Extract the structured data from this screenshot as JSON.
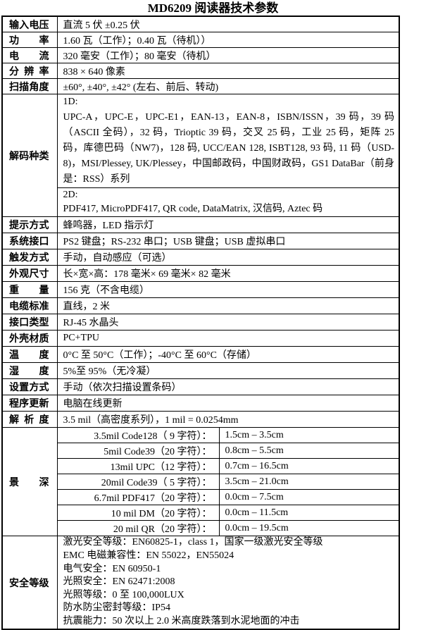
{
  "title": "MD6209 阅读器技术参数",
  "rows_top": [
    {
      "label": "输入电压",
      "value": "直流 5 伏 ±0.25 伏"
    },
    {
      "label": "功率",
      "value": "1.60 瓦（工作）；0.40 瓦（待机））"
    },
    {
      "label": "电流",
      "value": "320 毫安（工作）；80 毫安（待机）"
    },
    {
      "label": "分辨率",
      "value": "838 × 640 像素"
    },
    {
      "label": "扫描角度",
      "value": "±60°, ±40°, ±42° (左右、前后、转动)"
    }
  ],
  "decode": {
    "label": "解码种类",
    "d1": "1D:\nUPC-A，UPC-E，UPC-E1，EAN-13，EAN-8，ISBN/ISSN，39 码，39 码（ASCII 全码），32 码，Trioptic 39 码，交叉 25 码，工业 25 码，矩阵 25 码，库德巴码（NW7)，128 码, UCC/EAN 128, ISBT128, 93 码, 11 码（USD-8)，MSI/Plessey, UK/Plessey，中国邮政码，中国财政码，GS1 DataBar（前身是：RSS）系列",
    "d2": "2D:\nPDF417, MicroPDF417, QR code, DataMatrix,  汉信码, Aztec 码"
  },
  "singles": [
    {
      "label": "提示方式",
      "value": "蜂鸣器，LED 指示灯"
    },
    {
      "label": "系统接口",
      "value": "PS2 键盘；RS-232 串口；USB 键盘；USB 虚拟串口"
    },
    {
      "label": "触发方式",
      "value": "手动，自动感应（可选）"
    },
    {
      "label": "外观尺寸",
      "value": "长×宽×高：178 毫米× 69 毫米× 82 毫米"
    },
    {
      "label": "重量",
      "value": "156 克（不含电缆）"
    },
    {
      "label": "电缆标准",
      "value": "直线，2 米"
    },
    {
      "label": "接口类型",
      "value": "RJ-45 水晶头"
    },
    {
      "label": "外壳材质",
      "value": "PC+TPU"
    },
    {
      "label": "温度",
      "value": "0°C 至 50°C（工作）；-40°C 至 60°C（存储）"
    },
    {
      "label": "湿度",
      "value": "5%至 95%（无冷凝）"
    },
    {
      "label": "设置方式",
      "value": "手动（依次扫描设置条码）"
    },
    {
      "label": "程序更新",
      "value": "电脑在线更新"
    },
    {
      "label": "解析度",
      "value": "3.5 mil（高密度系列），1 mil = 0.0254mm"
    }
  ],
  "depth": {
    "label": "景深",
    "rows": [
      {
        "item": "3.5mil  Code128（ 9 字符）：",
        "range": "1.5cm – 3.5cm"
      },
      {
        "item": "5mil  Code39（20 字符）：",
        "range": "0.8cm – 5.5cm"
      },
      {
        "item": "13mil  UPC（12 字符）：",
        "range": "0.7cm – 16.5cm"
      },
      {
        "item": "20mil  Code39（ 5 字符）：",
        "range": "3.5cm – 21.0cm"
      },
      {
        "item": "6.7mil  PDF417（20 字符）：",
        "range": "0.0cm – 7.5cm"
      },
      {
        "item": "10 mil DM（20 字符）：",
        "range": "0.0cm – 11.5cm"
      },
      {
        "item": "20  mil  QR（20 字符）：",
        "range": "0.0cm – 19.5cm"
      }
    ]
  },
  "safety": {
    "label": "安全等级",
    "text": "激光安全等级：EN60825-1，class 1，国家一级激光安全等级\nEMC 电磁兼容性：EN 55022，EN55024\n电气安全：EN 60950-1\n光照安全：EN 62471:2008\n光照等级：0 至 100,000LUX\n防水防尘密封等级：IP54\n抗震能力：50 次以上 2.0 米高度跌落到水泥地面的冲击"
  },
  "colors": {
    "text": "#000000",
    "background": "#ffffff",
    "border": "#000000"
  }
}
